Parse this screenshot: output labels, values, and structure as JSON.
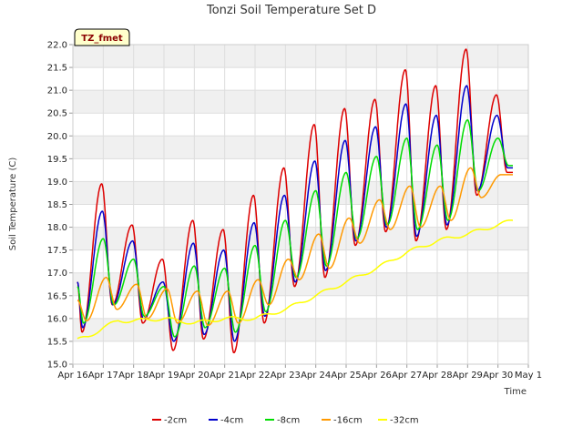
{
  "chart_data": {
    "type": "line",
    "title": "Tonzi Soil Temperature Set D",
    "xlabel": "Time",
    "ylabel": "Soil Temperature (C)",
    "badge": "TZ_fmet",
    "ylim": [
      15.0,
      22.0
    ],
    "yticks": [
      "15.0",
      "15.5",
      "16.0",
      "16.5",
      "17.0",
      "17.5",
      "18.0",
      "18.5",
      "19.0",
      "19.5",
      "20.0",
      "20.5",
      "21.0",
      "21.5",
      "22.0"
    ],
    "xlim_days": [
      0,
      15
    ],
    "xticks": [
      "Apr 16",
      "Apr 17",
      "Apr 18",
      "Apr 19",
      "Apr 20",
      "Apr 21",
      "Apr 22",
      "Apr 23",
      "Apr 24",
      "Apr 25",
      "Apr 26",
      "Apr 27",
      "Apr 28",
      "Apr 29",
      "Apr 30",
      "May 1"
    ],
    "grid": true,
    "band_shading": true,
    "legend_position": "bottom",
    "series": [
      {
        "name": "-2cm",
        "color": "#dd0000",
        "min": [
          15.7,
          16.3,
          15.9,
          15.3,
          15.55,
          15.25,
          15.9,
          16.7,
          16.9,
          17.6,
          17.9,
          17.7,
          17.95,
          18.7,
          19.2
        ],
        "max": [
          18.95,
          18.05,
          17.3,
          18.15,
          17.95,
          18.7,
          19.3,
          20.25,
          20.6,
          20.8,
          21.45,
          21.1,
          21.9,
          20.9
        ]
      },
      {
        "name": "-4cm",
        "color": "#0000cc",
        "min": [
          15.8,
          16.3,
          16.0,
          15.5,
          15.65,
          15.5,
          16.05,
          16.8,
          17.05,
          17.7,
          18.0,
          17.8,
          18.05,
          18.8,
          19.3
        ],
        "max": [
          18.35,
          17.7,
          16.8,
          17.65,
          17.5,
          18.1,
          18.7,
          19.45,
          19.9,
          20.2,
          20.7,
          20.45,
          21.1,
          20.45
        ]
      },
      {
        "name": "-8cm",
        "color": "#00dd00",
        "min": [
          15.9,
          16.3,
          16.05,
          15.6,
          15.8,
          15.7,
          16.15,
          16.9,
          17.15,
          17.75,
          18.05,
          17.95,
          18.15,
          18.8,
          19.35
        ],
        "max": [
          17.75,
          17.3,
          16.7,
          17.15,
          17.1,
          17.6,
          18.15,
          18.8,
          19.2,
          19.55,
          19.95,
          19.8,
          20.35,
          19.95
        ]
      },
      {
        "name": "-16cm",
        "color": "#ff9900",
        "min": [
          15.95,
          16.2,
          16.0,
          15.9,
          15.85,
          15.9,
          16.3,
          16.85,
          17.1,
          17.65,
          17.95,
          18.0,
          18.15,
          18.65,
          19.15
        ],
        "max": [
          16.9,
          16.75,
          16.65,
          16.6,
          16.6,
          16.85,
          17.3,
          17.85,
          18.2,
          18.6,
          18.9,
          18.9,
          19.3,
          19.15
        ]
      },
      {
        "name": "-32cm",
        "color": "#ffff00",
        "x": [
          0.0,
          0.5,
          1.0,
          1.5,
          2.0,
          3.0,
          4.0,
          5.0,
          6.0,
          7.0,
          8.0,
          9.0,
          10.0,
          11.0,
          12.0,
          13.0,
          14.0,
          14.5
        ],
        "y": [
          15.5,
          15.6,
          15.8,
          15.95,
          15.95,
          16.0,
          15.9,
          16.0,
          16.0,
          16.2,
          16.5,
          16.8,
          17.1,
          17.45,
          17.7,
          17.85,
          18.05,
          18.15
        ]
      }
    ]
  }
}
